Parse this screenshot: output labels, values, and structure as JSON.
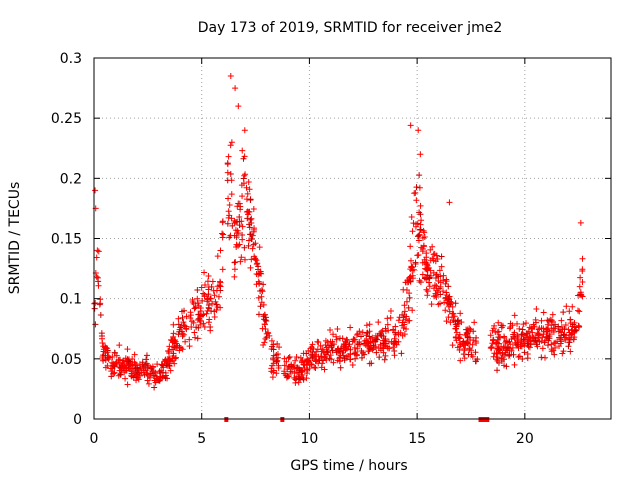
{
  "chart_data": {
    "type": "scatter",
    "title": "Day 173 of 2019, SRMTID for receiver jme2",
    "xlabel": "GPS time / hours",
    "ylabel": "SRMTID / TECUs",
    "xlim": [
      0,
      24
    ],
    "ylim": [
      0,
      0.3
    ],
    "xticks": [
      0,
      5,
      10,
      15,
      20
    ],
    "xtick_labels": [
      "0",
      "5",
      "10",
      "15",
      "20"
    ],
    "yticks": [
      0,
      0.05,
      0.1,
      0.15,
      0.2,
      0.25,
      0.3
    ],
    "ytick_labels": [
      "0",
      "0.05",
      "0.1",
      "0.15",
      "0.2",
      "0.25",
      "0.3"
    ],
    "grid": true,
    "marker": "+",
    "color": "#ff0000",
    "marker_color_dark": "#cc0000",
    "data_gaps_hours": [
      [
        6.0,
        6.2
      ],
      [
        8.6,
        8.8
      ],
      [
        17.8,
        18.4
      ]
    ],
    "series": [
      {
        "name": "SRMTID",
        "profile_x": [
          0,
          0.05,
          0.1,
          0.25,
          0.4,
          0.7,
          1.0,
          1.5,
          2.0,
          2.5,
          3.0,
          3.3,
          3.6,
          4.0,
          4.3,
          4.6,
          4.9,
          5.2,
          5.6,
          5.9,
          6.1,
          6.3,
          6.5,
          6.8,
          7.0,
          7.2,
          7.4,
          7.6,
          7.9,
          8.3,
          8.8,
          9.2,
          9.6,
          10.0,
          10.5,
          11.0,
          11.5,
          12.0,
          12.5,
          13.0,
          13.5,
          14.0,
          14.3,
          14.6,
          14.8,
          15.0,
          15.2,
          15.5,
          15.8,
          16.1,
          16.4,
          16.7,
          17.0,
          17.3,
          17.6,
          17.8,
          18.4,
          18.6,
          19.0,
          19.5,
          20.0,
          20.5,
          21.0,
          21.5,
          22.0,
          22.3,
          22.5,
          22.7
        ],
        "profile_y": [
          0.08,
          0.09,
          0.14,
          0.11,
          0.06,
          0.045,
          0.045,
          0.045,
          0.042,
          0.038,
          0.036,
          0.045,
          0.058,
          0.07,
          0.078,
          0.085,
          0.09,
          0.098,
          0.1,
          0.12,
          0.17,
          0.19,
          0.14,
          0.16,
          0.2,
          0.17,
          0.14,
          0.13,
          0.08,
          0.05,
          0.045,
          0.042,
          0.04,
          0.05,
          0.055,
          0.06,
          0.058,
          0.06,
          0.062,
          0.065,
          0.066,
          0.07,
          0.08,
          0.1,
          0.14,
          0.17,
          0.15,
          0.12,
          0.115,
          0.11,
          0.1,
          0.08,
          0.07,
          0.065,
          0.06,
          0.055,
          0.06,
          0.06,
          0.062,
          0.065,
          0.068,
          0.07,
          0.068,
          0.07,
          0.072,
          0.075,
          0.095,
          0.12
        ],
        "profile_spread": [
          0.02,
          0.03,
          0.04,
          0.03,
          0.02,
          0.018,
          0.018,
          0.018,
          0.018,
          0.018,
          0.018,
          0.02,
          0.022,
          0.025,
          0.025,
          0.028,
          0.03,
          0.035,
          0.035,
          0.05,
          0.08,
          0.07,
          0.05,
          0.06,
          0.08,
          0.06,
          0.05,
          0.045,
          0.03,
          0.02,
          0.018,
          0.018,
          0.018,
          0.02,
          0.02,
          0.022,
          0.022,
          0.024,
          0.024,
          0.025,
          0.025,
          0.025,
          0.03,
          0.04,
          0.06,
          0.07,
          0.06,
          0.04,
          0.04,
          0.04,
          0.035,
          0.03,
          0.03,
          0.025,
          0.025,
          0.025,
          0.025,
          0.025,
          0.025,
          0.025,
          0.025,
          0.025,
          0.025,
          0.025,
          0.025,
          0.03,
          0.04,
          0.04
        ],
        "peak_values": [
          [
            0.05,
            0.19
          ],
          [
            0.08,
            0.175
          ],
          [
            6.35,
            0.285
          ],
          [
            6.55,
            0.275
          ],
          [
            6.7,
            0.26
          ],
          [
            7.0,
            0.24
          ],
          [
            6.4,
            0.23
          ],
          [
            14.7,
            0.244
          ],
          [
            15.05,
            0.24
          ],
          [
            15.15,
            0.22
          ],
          [
            16.5,
            0.18
          ],
          [
            22.6,
            0.163
          ]
        ],
        "point_count": 1500
      }
    ]
  }
}
